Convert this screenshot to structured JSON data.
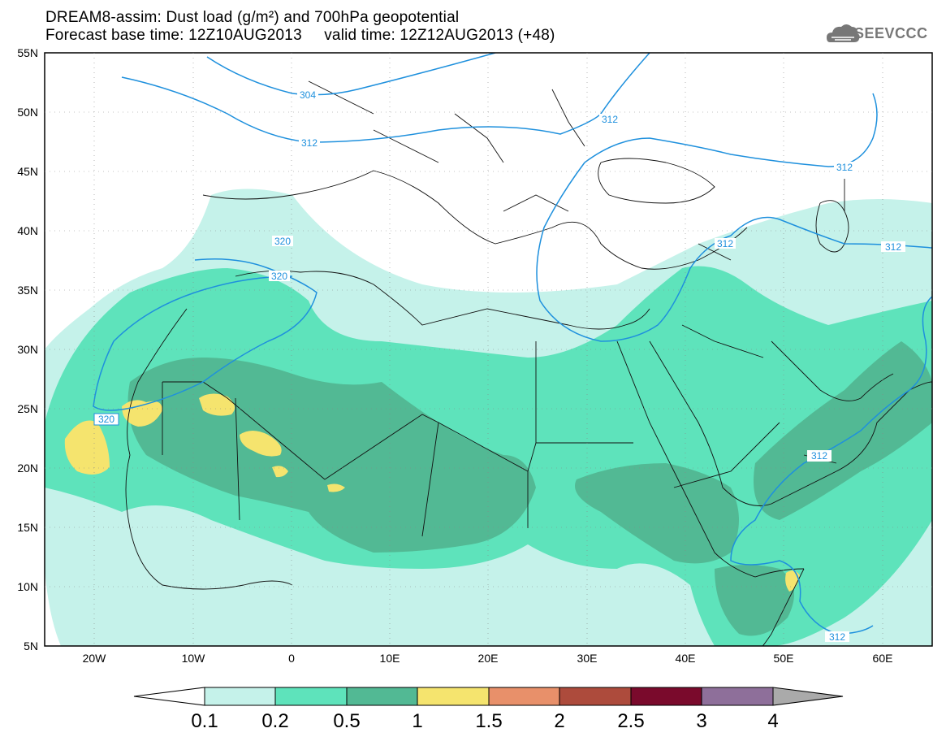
{
  "header": {
    "line1": "DREAM8-assim: Dust load (g/m²) and 700hPa geopotential",
    "line2": "Forecast base time: 12Z10AUG2013     valid time: 12Z12AUG2013 (+48)",
    "logo_text": "SEEVCCC"
  },
  "axes": {
    "lat_labels": [
      "55N",
      "50N",
      "45N",
      "40N",
      "35N",
      "30N",
      "25N",
      "20N",
      "15N",
      "10N",
      "5N"
    ],
    "lon_labels": [
      "20W",
      "10W",
      "0",
      "10E",
      "20E",
      "30E",
      "40E",
      "50E",
      "60E"
    ]
  },
  "contour_labels": [
    "304",
    "312",
    "312",
    "312",
    "312",
    "320",
    "320",
    "320",
    "312",
    "312",
    "312"
  ],
  "colorbar": {
    "ticks": [
      "0.1",
      "0.2",
      "0.5",
      "1",
      "1.5",
      "2",
      "2.5",
      "3",
      "4"
    ],
    "colors": [
      "#c5f2ea",
      "#5ee3bb",
      "#52b994",
      "#f5e46e",
      "#e8906a",
      "#ad4b3c",
      "#7a0a2c",
      "#8e6f9a"
    ],
    "low_color": "#ffffff",
    "high_color": "#aaaaaa"
  },
  "colors": {
    "contour": "#1e90dd",
    "light": "#c5f2ea",
    "medium": "#5ee3bb",
    "dark": "#52b994",
    "yellow": "#f5e46e"
  }
}
